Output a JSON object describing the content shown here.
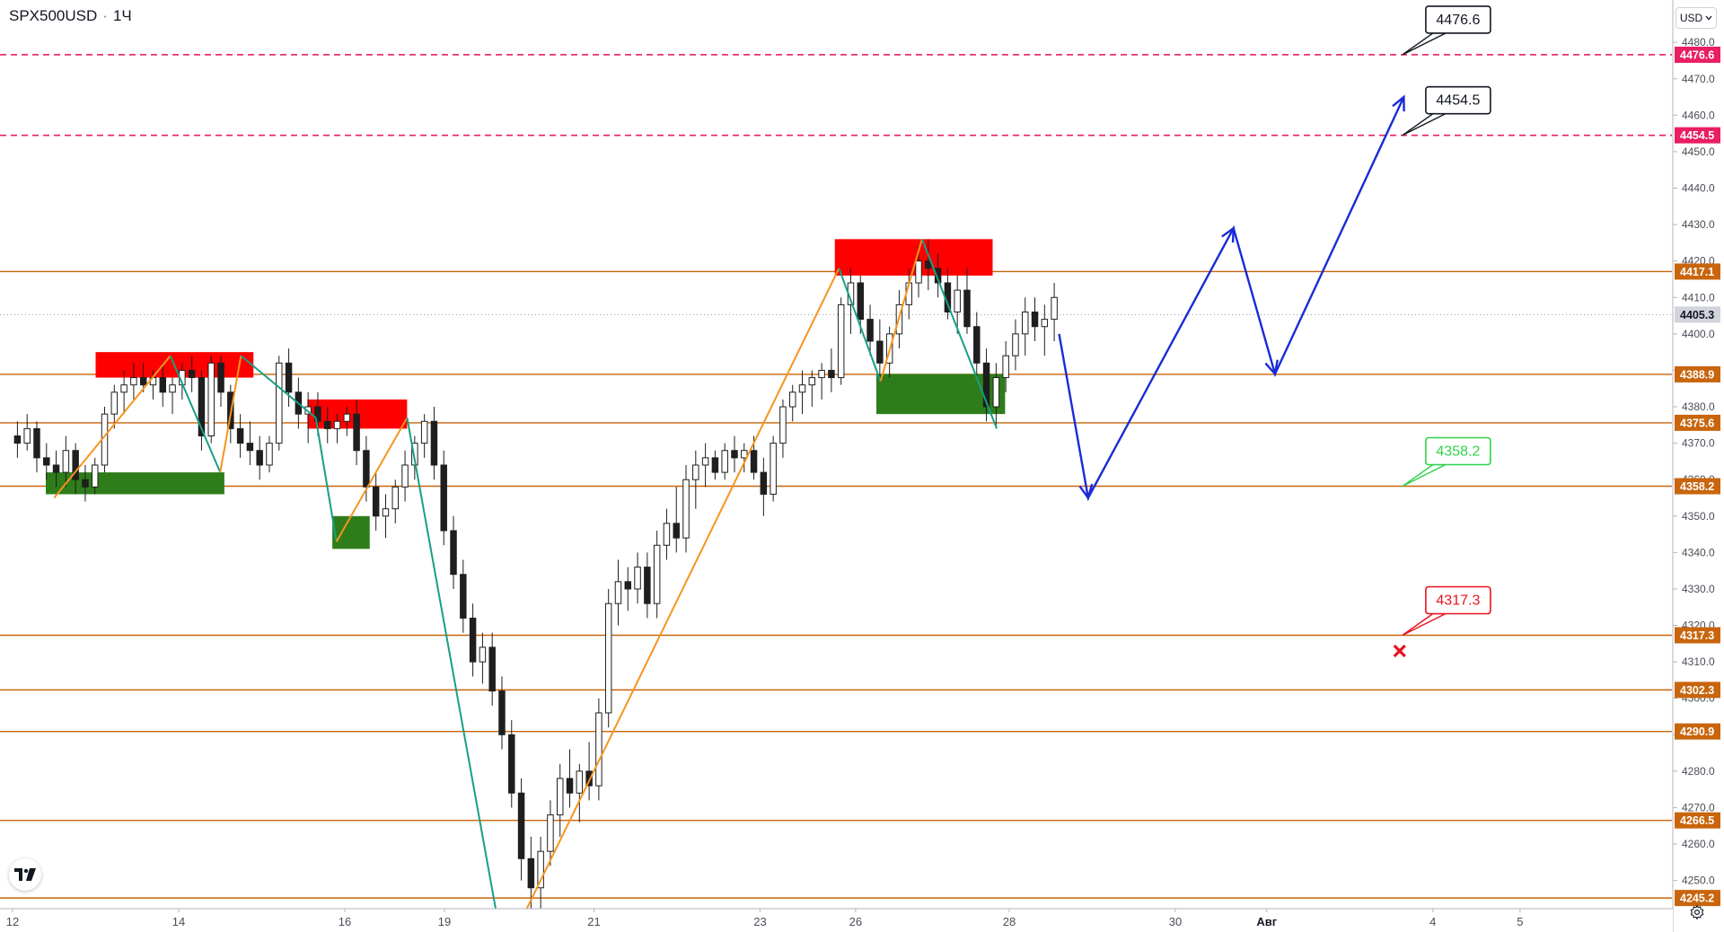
{
  "header": {
    "symbol": "SPX500USD",
    "separator": "·",
    "interval": "1Ч"
  },
  "currency": {
    "label": "USD",
    "icon": "chevron-down-icon"
  },
  "logo": {
    "icon": "tradingview-logo-icon"
  },
  "settings": {
    "icon": "gear-icon"
  },
  "colors": {
    "bull": "#1e1e1e",
    "bear": "#1e1e1e",
    "level": "#c8650d",
    "dashed": "#e91e63",
    "last_price": "#9598a1",
    "zigzag_up": "#f7941d",
    "zigzag_down": "#16a085",
    "supply": "#ff0000",
    "demand": "#2e7d1a",
    "forecast": "#1a2bd6"
  },
  "chart_data": {
    "type": "candlestick",
    "ylim": [
      4240,
      4488
    ],
    "y_ticks": [
      4250,
      4260,
      4270,
      4280,
      4290,
      4300,
      4310,
      4320,
      4330,
      4340,
      4350,
      4360,
      4370,
      4380,
      4390,
      4400,
      4410,
      4420,
      4430,
      4440,
      4450,
      4460,
      4470,
      4480
    ],
    "x_ticks": [
      {
        "label": "12",
        "t": 0
      },
      {
        "label": "14",
        "t": 2
      },
      {
        "label": "16",
        "t": 4
      },
      {
        "label": "19",
        "t": 5.2
      },
      {
        "label": "21",
        "t": 7
      },
      {
        "label": "23",
        "t": 9
      },
      {
        "label": "26",
        "t": 10.15
      },
      {
        "label": "28",
        "t": 12
      },
      {
        "label": "30",
        "t": 14
      },
      {
        "label": "Авг",
        "t": 15.1
      },
      {
        "label": "4",
        "t": 17.1
      },
      {
        "label": "5",
        "t": 18.15
      }
    ],
    "price_tags": [
      {
        "value": 4476.6,
        "label": "4476.6",
        "kind": "dashed"
      },
      {
        "value": 4454.5,
        "label": "4454.5",
        "kind": "dashed"
      },
      {
        "value": 4417.1,
        "label": "4417.1",
        "kind": "level"
      },
      {
        "value": 4405.3,
        "label": "4405.3",
        "kind": "last"
      },
      {
        "value": 4388.9,
        "label": "4388.9",
        "kind": "level"
      },
      {
        "value": 4375.6,
        "label": "4375.6",
        "kind": "level"
      },
      {
        "value": 4358.2,
        "label": "4358.2",
        "kind": "level"
      },
      {
        "value": 4317.3,
        "label": "4317.3",
        "kind": "level"
      },
      {
        "value": 4302.3,
        "label": "4302.3",
        "kind": "level"
      },
      {
        "value": 4290.9,
        "label": "4290.9",
        "kind": "level"
      },
      {
        "value": 4266.5,
        "label": "4266.5",
        "kind": "level"
      },
      {
        "value": 4245.2,
        "label": "4245.2",
        "kind": "level"
      }
    ],
    "callouts": [
      {
        "label": "4476.6",
        "value": 4476.6,
        "t": 16.95,
        "style": "black"
      },
      {
        "label": "4454.5",
        "value": 4454.5,
        "t": 16.95,
        "style": "black"
      },
      {
        "label": "4358.2",
        "value": 4358.2,
        "t": 16.95,
        "style": "green"
      },
      {
        "label": "4317.3",
        "value": 4317.3,
        "t": 16.95,
        "style": "red"
      }
    ],
    "stop_marker": {
      "t": 16.7,
      "value": 4313
    },
    "zones": [
      {
        "kind": "supply",
        "t0": 1.0,
        "t1": 2.9,
        "y0": 4388,
        "y1": 4395
      },
      {
        "kind": "supply",
        "t0": 3.55,
        "t1": 4.75,
        "y0": 4374,
        "y1": 4382
      },
      {
        "kind": "supply",
        "t0": 9.9,
        "t1": 11.8,
        "y0": 4416,
        "y1": 4426
      },
      {
        "kind": "demand",
        "t0": 0.4,
        "t1": 2.55,
        "y0": 4356,
        "y1": 4362
      },
      {
        "kind": "demand",
        "t0": 3.85,
        "t1": 4.3,
        "y0": 4341,
        "y1": 4350
      },
      {
        "kind": "demand",
        "t0": 10.4,
        "t1": 11.95,
        "y0": 4378,
        "y1": 4389
      }
    ],
    "zigzag": [
      {
        "t": 0.5,
        "v": 4355
      },
      {
        "t": 1.9,
        "v": 4394
      },
      {
        "t": 2.5,
        "v": 4362
      },
      {
        "t": 2.75,
        "v": 4394
      },
      {
        "t": 3.65,
        "v": 4377
      },
      {
        "t": 3.9,
        "v": 4343
      },
      {
        "t": 4.75,
        "v": 4377
      },
      {
        "t": 5.85,
        "v": 4238
      },
      {
        "t": 6.1,
        "v": 4238
      },
      {
        "t": 9.95,
        "v": 4418
      },
      {
        "t": 10.45,
        "v": 4387
      },
      {
        "t": 10.95,
        "v": 4426
      },
      {
        "t": 11.85,
        "v": 4374
      }
    ],
    "forecast_path": [
      {
        "t": 12.6,
        "v": 4400
      },
      {
        "t": 12.95,
        "v": 4355
      },
      {
        "t": 14.7,
        "v": 4429
      },
      {
        "t": 15.2,
        "v": 4389
      },
      {
        "t": 16.75,
        "v": 4465
      }
    ],
    "candles": [
      [
        4372,
        4376,
        4366,
        4370
      ],
      [
        4370,
        4378,
        4368,
        4374
      ],
      [
        4374,
        4376,
        4362,
        4366
      ],
      [
        4366,
        4370,
        4360,
        4364
      ],
      [
        4364,
        4368,
        4358,
        4362
      ],
      [
        4362,
        4372,
        4358,
        4368
      ],
      [
        4368,
        4370,
        4356,
        4360
      ],
      [
        4360,
        4364,
        4354,
        4358
      ],
      [
        4358,
        4366,
        4356,
        4364
      ],
      [
        4364,
        4380,
        4362,
        4378
      ],
      [
        4378,
        4386,
        4374,
        4384
      ],
      [
        4384,
        4390,
        4378,
        4386
      ],
      [
        4386,
        4392,
        4382,
        4388
      ],
      [
        4388,
        4392,
        4384,
        4386
      ],
      [
        4386,
        4390,
        4382,
        4388
      ],
      [
        4388,
        4392,
        4380,
        4384
      ],
      [
        4384,
        4388,
        4378,
        4386
      ],
      [
        4386,
        4392,
        4382,
        4390
      ],
      [
        4390,
        4394,
        4384,
        4388
      ],
      [
        4388,
        4390,
        4368,
        4372
      ],
      [
        4372,
        4394,
        4370,
        4392
      ],
      [
        4392,
        4394,
        4380,
        4384
      ],
      [
        4384,
        4386,
        4370,
        4374
      ],
      [
        4374,
        4378,
        4366,
        4370
      ],
      [
        4370,
        4376,
        4364,
        4368
      ],
      [
        4368,
        4372,
        4360,
        4364
      ],
      [
        4364,
        4372,
        4362,
        4370
      ],
      [
        4370,
        4394,
        4368,
        4392
      ],
      [
        4392,
        4396,
        4380,
        4384
      ],
      [
        4384,
        4388,
        4374,
        4378
      ],
      [
        4378,
        4384,
        4370,
        4380
      ],
      [
        4380,
        4384,
        4372,
        4376
      ],
      [
        4376,
        4380,
        4370,
        4374
      ],
      [
        4374,
        4378,
        4370,
        4376
      ],
      [
        4376,
        4380,
        4372,
        4378
      ],
      [
        4378,
        4382,
        4364,
        4368
      ],
      [
        4368,
        4372,
        4354,
        4358
      ],
      [
        4358,
        4362,
        4346,
        4350
      ],
      [
        4350,
        4356,
        4344,
        4352
      ],
      [
        4352,
        4360,
        4348,
        4358
      ],
      [
        4358,
        4368,
        4354,
        4364
      ],
      [
        4364,
        4372,
        4360,
        4370
      ],
      [
        4370,
        4378,
        4366,
        4376
      ],
      [
        4376,
        4380,
        4360,
        4364
      ],
      [
        4364,
        4368,
        4342,
        4346
      ],
      [
        4346,
        4350,
        4330,
        4334
      ],
      [
        4334,
        4338,
        4318,
        4322
      ],
      [
        4322,
        4326,
        4306,
        4310
      ],
      [
        4310,
        4318,
        4304,
        4314
      ],
      [
        4314,
        4318,
        4298,
        4302
      ],
      [
        4302,
        4306,
        4286,
        4290
      ],
      [
        4290,
        4294,
        4270,
        4274
      ],
      [
        4274,
        4278,
        4250,
        4256
      ],
      [
        4256,
        4262,
        4242,
        4248
      ],
      [
        4248,
        4262,
        4240,
        4258
      ],
      [
        4258,
        4272,
        4254,
        4268
      ],
      [
        4268,
        4282,
        4262,
        4278
      ],
      [
        4278,
        4286,
        4270,
        4274
      ],
      [
        4274,
        4282,
        4266,
        4280
      ],
      [
        4280,
        4288,
        4272,
        4276
      ],
      [
        4276,
        4300,
        4272,
        4296
      ],
      [
        4296,
        4330,
        4292,
        4326
      ],
      [
        4326,
        4338,
        4320,
        4332
      ],
      [
        4332,
        4336,
        4324,
        4330
      ],
      [
        4330,
        4340,
        4326,
        4336
      ],
      [
        4336,
        4340,
        4322,
        4326
      ],
      [
        4326,
        4346,
        4322,
        4342
      ],
      [
        4342,
        4352,
        4338,
        4348
      ],
      [
        4348,
        4358,
        4340,
        4344
      ],
      [
        4344,
        4364,
        4340,
        4360
      ],
      [
        4360,
        4368,
        4352,
        4364
      ],
      [
        4364,
        4370,
        4358,
        4366
      ],
      [
        4366,
        4368,
        4360,
        4362
      ],
      [
        4362,
        4370,
        4360,
        4368
      ],
      [
        4368,
        4372,
        4362,
        4366
      ],
      [
        4366,
        4370,
        4362,
        4368
      ],
      [
        4368,
        4372,
        4360,
        4362
      ],
      [
        4362,
        4366,
        4350,
        4356
      ],
      [
        4356,
        4372,
        4354,
        4370
      ],
      [
        4370,
        4382,
        4366,
        4380
      ],
      [
        4380,
        4386,
        4376,
        4384
      ],
      [
        4384,
        4390,
        4378,
        4386
      ],
      [
        4386,
        4390,
        4380,
        4388
      ],
      [
        4388,
        4392,
        4382,
        4390
      ],
      [
        4390,
        4396,
        4384,
        4388
      ],
      [
        4388,
        4410,
        4386,
        4408
      ],
      [
        4408,
        4418,
        4400,
        4414
      ],
      [
        4414,
        4416,
        4400,
        4404
      ],
      [
        4404,
        4408,
        4394,
        4398
      ],
      [
        4398,
        4404,
        4388,
        4392
      ],
      [
        4392,
        4402,
        4388,
        4400
      ],
      [
        4400,
        4412,
        4396,
        4408
      ],
      [
        4408,
        4418,
        4404,
        4414
      ],
      [
        4414,
        4424,
        4410,
        4420
      ],
      [
        4420,
        4426,
        4412,
        4418
      ],
      [
        4418,
        4422,
        4410,
        4414
      ],
      [
        4414,
        4418,
        4404,
        4406
      ],
      [
        4406,
        4416,
        4400,
        4412
      ],
      [
        4412,
        4418,
        4400,
        4402
      ],
      [
        4402,
        4406,
        4388,
        4392
      ],
      [
        4392,
        4396,
        4376,
        4380
      ],
      [
        4380,
        4392,
        4374,
        4388
      ],
      [
        4388,
        4398,
        4384,
        4394
      ],
      [
        4394,
        4404,
        4390,
        4400
      ],
      [
        4400,
        4410,
        4394,
        4406
      ],
      [
        4406,
        4410,
        4398,
        4402
      ],
      [
        4402,
        4408,
        4394,
        4404
      ],
      [
        4404,
        4414,
        4398,
        4410
      ]
    ]
  }
}
